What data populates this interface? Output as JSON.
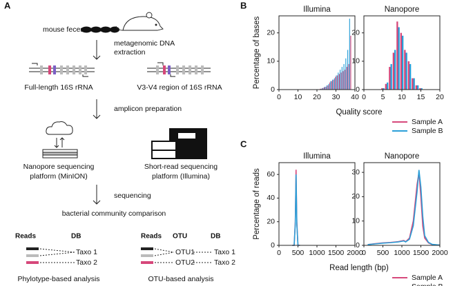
{
  "panels": {
    "b": "B",
    "c": "C"
  },
  "diagram": {
    "panel_label": "A",
    "mouse_feces": "mouse feces",
    "extraction": [
      "metagenomic DNA",
      "extraction"
    ],
    "full_length": "Full-length 16S rRNA",
    "v3v4": "V3-V4 region of 16S rRNA",
    "amplicon": "amplicon preparation",
    "nanopore": [
      "Nanopore sequencing",
      "platform (MinION)"
    ],
    "illumina": [
      "Short-read sequencing",
      "platform (Illumina)"
    ],
    "sequencing": "sequencing",
    "comparison": "bacterial community comparison",
    "phylotype": {
      "headers": [
        "Reads",
        "DB"
      ],
      "taxa": [
        "Taxo 1",
        "Taxo 2"
      ],
      "caption": "Phylotype-based analysis"
    },
    "otu": {
      "headers": [
        "Reads",
        "OTU",
        "DB"
      ],
      "otus": [
        "OTU1",
        "OTU2"
      ],
      "taxa": [
        "Taxo 1",
        "Taxo 2"
      ],
      "caption": "OTU-based analysis"
    }
  },
  "chart_data": [
    {
      "type": "bar",
      "title": "Illumina",
      "y_label": "Percentage of bases",
      "x_label": "Quality score",
      "x": [
        22,
        23,
        24,
        25,
        26,
        27,
        28,
        29,
        30,
        31,
        32,
        33,
        34,
        35,
        36,
        37,
        38
      ],
      "series": [
        {
          "name": "Sample A",
          "color": "#d6477a",
          "values": [
            0.3,
            0.5,
            0.8,
            1,
            1.5,
            2.5,
            3,
            3.5,
            4.5,
            5,
            5.5,
            6,
            6.5,
            7,
            8,
            9,
            19
          ]
        },
        {
          "name": "Sample B",
          "color": "#2a9fd8",
          "values": [
            0.3,
            0.6,
            1,
            1.5,
            2,
            3,
            3.5,
            4,
            5,
            6,
            7,
            8,
            9,
            11,
            14,
            25,
            0
          ]
        }
      ],
      "xlim": [
        0,
        40
      ],
      "xticks": [
        0,
        10,
        20,
        30,
        40
      ],
      "ylim": [
        0,
        26
      ],
      "yticks": [
        0,
        10,
        20
      ]
    },
    {
      "type": "bar",
      "title": "Nanopore",
      "x": [
        5,
        6,
        7,
        8,
        9,
        10,
        11,
        12,
        13,
        14,
        15
      ],
      "series": [
        {
          "name": "Sample A",
          "color": "#d6477a",
          "values": [
            0.5,
            2,
            8,
            13,
            24,
            20,
            14,
            10,
            4,
            1.5,
            0.5
          ]
        },
        {
          "name": "Sample B",
          "color": "#2a9fd8",
          "values": [
            0.5,
            2.5,
            9,
            14,
            22,
            19,
            13,
            9,
            4,
            1.5,
            0.5
          ]
        }
      ],
      "xlim": [
        0,
        20
      ],
      "xticks": [
        0,
        5,
        10,
        15,
        20
      ],
      "ylim": [
        0,
        26
      ],
      "yticks": [
        0,
        10,
        20
      ]
    },
    {
      "type": "line",
      "title": "Illumina",
      "y_label": "Percentage of reads",
      "x_label": "Read length (bp)",
      "x": [
        350,
        400,
        430,
        450,
        470,
        500,
        550
      ],
      "series": [
        {
          "name": "Sample A",
          "color": "#d6477a",
          "values": [
            0,
            0,
            20,
            64,
            20,
            0,
            0
          ]
        },
        {
          "name": "Sample B",
          "color": "#2a9fd8",
          "values": [
            0,
            0,
            18,
            60,
            18,
            0,
            0
          ]
        }
      ],
      "xlim": [
        0,
        2000
      ],
      "xticks": [
        0,
        500,
        1000,
        1500,
        2000
      ],
      "ylim": [
        0,
        70
      ],
      "yticks": [
        0,
        20,
        40,
        60
      ]
    },
    {
      "type": "line",
      "title": "Nanopore",
      "x": [
        100,
        300,
        500,
        700,
        900,
        1050,
        1100,
        1200,
        1300,
        1400,
        1450,
        1500,
        1550,
        1600,
        1700,
        1800,
        2000
      ],
      "series": [
        {
          "name": "Sample A",
          "color": "#d6477a",
          "values": [
            0.3,
            0.7,
            1,
            1.2,
            1.5,
            2,
            1.5,
            3,
            10,
            25,
            30,
            20,
            8,
            3,
            1,
            0.3,
            0.1
          ]
        },
        {
          "name": "Sample B",
          "color": "#2a9fd8",
          "values": [
            0.3,
            0.6,
            0.9,
            1.1,
            1.4,
            1.8,
            1.4,
            2.5,
            8,
            22,
            31,
            24,
            12,
            4,
            1.2,
            0.4,
            0.1
          ]
        }
      ],
      "xlim": [
        0,
        2000
      ],
      "xticks": [
        0,
        500,
        1000,
        1500,
        2000
      ],
      "ylim": [
        0,
        34
      ],
      "yticks": [
        0,
        10,
        20,
        30
      ]
    }
  ]
}
